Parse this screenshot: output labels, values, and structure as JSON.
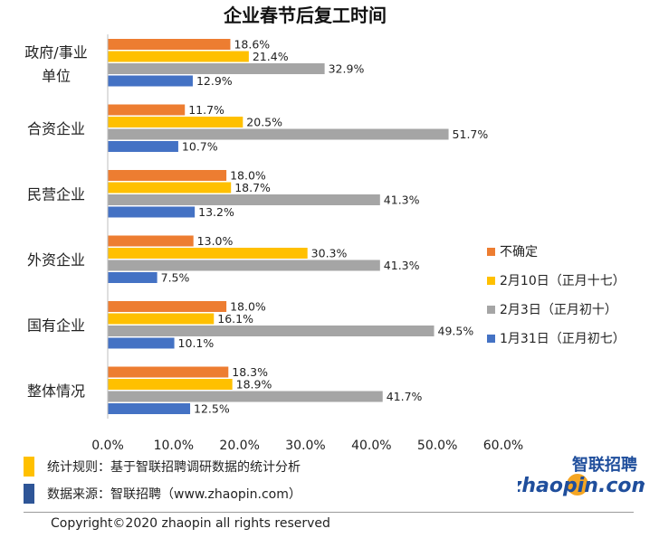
{
  "chart_data": {
    "type": "bar",
    "orientation": "horizontal",
    "title": "企业春节后复工时间",
    "categories": [
      "政府/事业单位",
      "合资企业",
      "民营企业",
      "外资企业",
      "国有企业",
      "整体情况"
    ],
    "category_lines": [
      [
        "政府/事业",
        "单位"
      ],
      [
        "合资企业"
      ],
      [
        "民营企业"
      ],
      [
        "外资企业"
      ],
      [
        "国有企业"
      ],
      [
        "整体情况"
      ]
    ],
    "series": [
      {
        "name": "不确定",
        "color": "#ED7D31",
        "values": [
          18.6,
          11.7,
          18.0,
          13.0,
          18.0,
          18.3
        ],
        "labels": [
          "18.6%",
          "11.7%",
          "18.0%",
          "13.0%",
          "18.0%",
          "18.3%"
        ]
      },
      {
        "name": "2月10日（正月十七）",
        "color": "#FFC000",
        "values": [
          21.4,
          20.5,
          18.7,
          30.3,
          16.1,
          18.9
        ],
        "labels": [
          "21.4%",
          "20.5%",
          "18.7%",
          "30.3%",
          "16.1%",
          "18.9%"
        ]
      },
      {
        "name": "2月3日（正月初十）",
        "color": "#A5A5A5",
        "values": [
          32.9,
          51.7,
          41.3,
          41.3,
          49.5,
          41.7
        ],
        "labels": [
          "32.9%",
          "51.7%",
          "41.3%",
          "41.3%",
          "49.5%",
          "41.7%"
        ]
      },
      {
        "name": "1月31日（正月初七）",
        "color": "#4472C4",
        "values": [
          12.9,
          10.7,
          13.2,
          7.5,
          10.1,
          12.5
        ],
        "labels": [
          "12.9%",
          "10.7%",
          "13.2%",
          "7.5%",
          "10.1%",
          "12.5%"
        ]
      }
    ],
    "xlim": [
      0,
      60
    ],
    "xticks": [
      0,
      10,
      20,
      30,
      40,
      50,
      60
    ],
    "xtick_labels": [
      "0.0%",
      "10.0%",
      "20.0%",
      "30.0%",
      "40.0%",
      "50.0%",
      "60.0%"
    ],
    "legend_position": "right",
    "grid": false
  },
  "notes": [
    {
      "text": "统计规则：基于智联招聘调研数据的统计分析",
      "color": "#FFC000"
    },
    {
      "text": "数据来源：智联招聘（www.zhaopin.com）",
      "color": "#2E5597"
    }
  ],
  "copyright": "Copyright©2020 zhaopin all rights reserved",
  "logo": {
    "top": "智联招聘",
    "bottom": "zhaopin.com",
    "color": "#1F4E9C",
    "accent": "#F5A623"
  }
}
